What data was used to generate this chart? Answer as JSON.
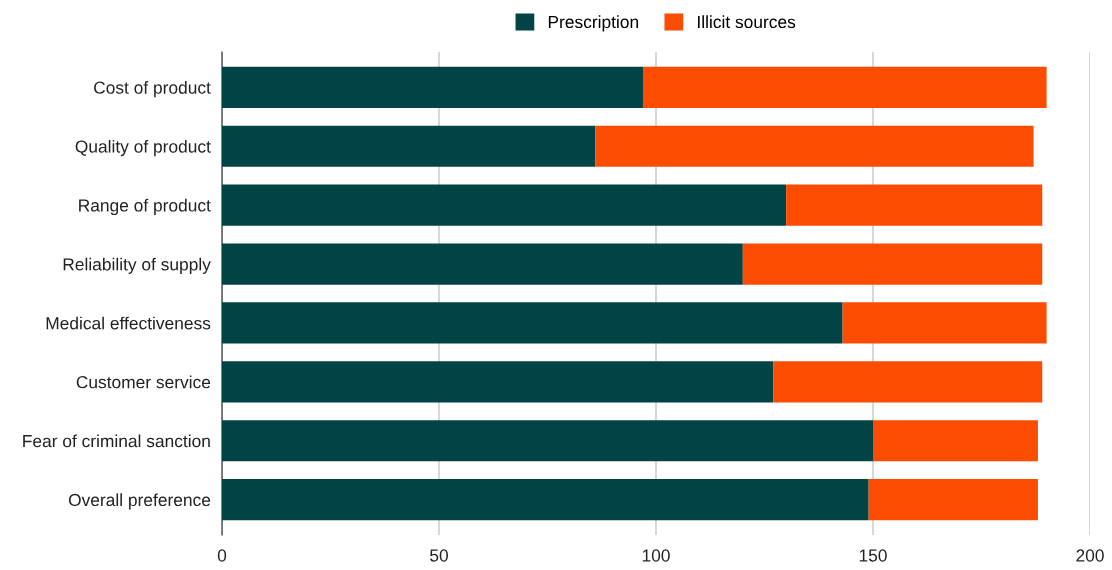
{
  "chart_data": {
    "type": "bar",
    "orientation": "horizontal",
    "stacked": true,
    "categories": [
      "Cost of product",
      "Quality of product",
      "Range of product",
      "Reliability of supply",
      "Medical effectiveness",
      "Customer service",
      "Fear of criminal sanction",
      "Overall preference"
    ],
    "series": [
      {
        "name": "Prescription",
        "color": "#024446",
        "values": [
          97,
          86,
          130,
          120,
          143,
          127,
          150,
          149
        ]
      },
      {
        "name": "Illicit sources",
        "color": "#fc4c02",
        "values": [
          93,
          101,
          59,
          69,
          47,
          62,
          38,
          39
        ]
      }
    ],
    "xlim": [
      0,
      200
    ],
    "xticks": [
      0,
      50,
      100,
      150,
      200
    ],
    "grid": "x",
    "legend": "top"
  }
}
